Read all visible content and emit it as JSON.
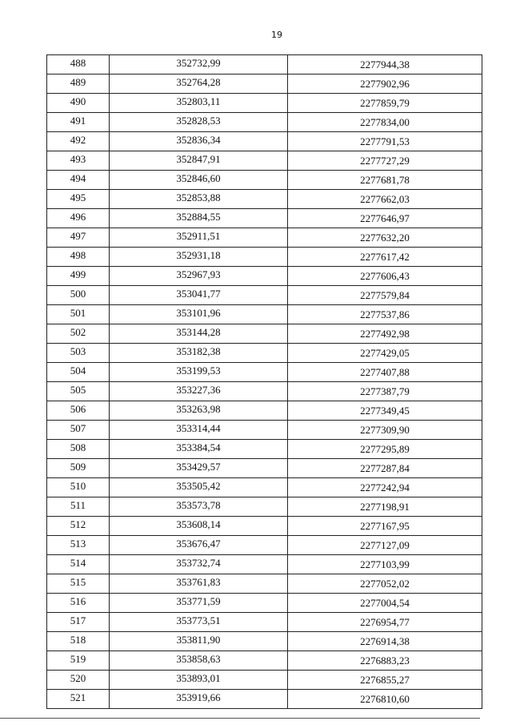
{
  "page_number": "19",
  "rows": [
    [
      "488",
      "352732,99",
      "2277944,38"
    ],
    [
      "489",
      "352764,28",
      "2277902,96"
    ],
    [
      "490",
      "352803,11",
      "2277859,79"
    ],
    [
      "491",
      "352828,53",
      "2277834,00"
    ],
    [
      "492",
      "352836,34",
      "2277791,53"
    ],
    [
      "493",
      "352847,91",
      "2277727,29"
    ],
    [
      "494",
      "352846,60",
      "2277681,78"
    ],
    [
      "495",
      "352853,88",
      "2277662,03"
    ],
    [
      "496",
      "352884,55",
      "2277646,97"
    ],
    [
      "497",
      "352911,51",
      "2277632,20"
    ],
    [
      "498",
      "352931,18",
      "2277617,42"
    ],
    [
      "499",
      "352967,93",
      "2277606,43"
    ],
    [
      "500",
      "353041,77",
      "2277579,84"
    ],
    [
      "501",
      "353101,96",
      "2277537,86"
    ],
    [
      "502",
      "353144,28",
      "2277492,98"
    ],
    [
      "503",
      "353182,38",
      "2277429,05"
    ],
    [
      "504",
      "353199,53",
      "2277407,88"
    ],
    [
      "505",
      "353227,36",
      "2277387,79"
    ],
    [
      "506",
      "353263,98",
      "2277349,45"
    ],
    [
      "507",
      "353314,44",
      "2277309,90"
    ],
    [
      "508",
      "353384,54",
      "2277295,89"
    ],
    [
      "509",
      "353429,57",
      "2277287,84"
    ],
    [
      "510",
      "353505,42",
      "2277242,94"
    ],
    [
      "511",
      "353573,78",
      "2277198,91"
    ],
    [
      "512",
      "353608,14",
      "2277167,95"
    ],
    [
      "513",
      "353676,47",
      "2277127,09"
    ],
    [
      "514",
      "353732,74",
      "2277103,99"
    ],
    [
      "515",
      "353761,83",
      "2277052,02"
    ],
    [
      "516",
      "353771,59",
      "2277004,54"
    ],
    [
      "517",
      "353773,51",
      "2276954,77"
    ],
    [
      "518",
      "353811,90",
      "2276914,38"
    ],
    [
      "519",
      "353858,63",
      "2276883,23"
    ],
    [
      "520",
      "353893,01",
      "2276855,27"
    ],
    [
      "521",
      "353919,66",
      "2276810,60"
    ]
  ]
}
